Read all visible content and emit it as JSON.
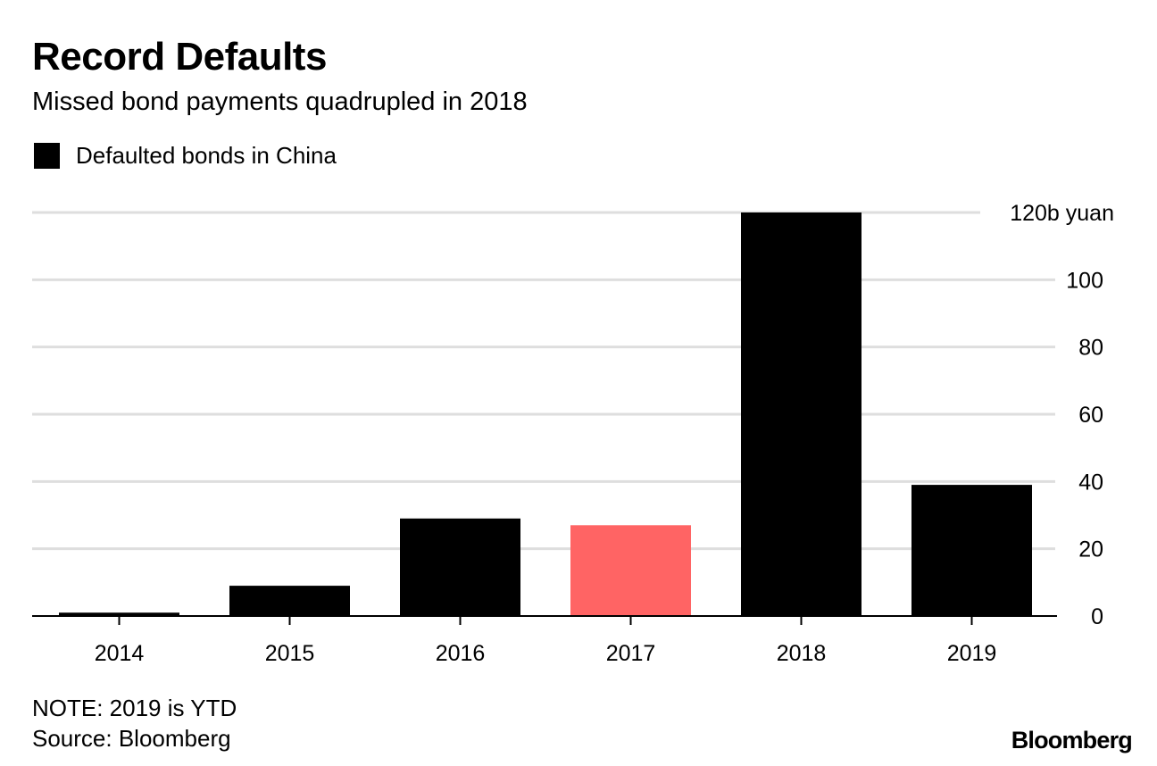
{
  "header": {
    "title": "Record Defaults",
    "subtitle": "Missed bond payments quadrupled in 2018"
  },
  "legend": {
    "label": "Defaulted bonds in China",
    "color": "#000000"
  },
  "chart_data": {
    "type": "bar",
    "categories": [
      "2014",
      "2015",
      "2016",
      "2017",
      "2018",
      "2019"
    ],
    "values": [
      1,
      9,
      29,
      27,
      120,
      39
    ],
    "colors": [
      "#000000",
      "#000000",
      "#000000",
      "#ff6464",
      "#000000",
      "#000000"
    ],
    "ylim": [
      0,
      120
    ],
    "yticks": [
      0,
      20,
      40,
      60,
      80,
      100,
      120
    ],
    "ytick_labels": [
      "0",
      "20",
      "40",
      "60",
      "80",
      "100",
      "120b yuan"
    ],
    "axis_position": "right",
    "grid": true,
    "legend_position": "top-left"
  },
  "footer": {
    "note": "NOTE: 2019 is YTD",
    "source": "Source: Bloomberg",
    "brand": "Bloomberg"
  }
}
